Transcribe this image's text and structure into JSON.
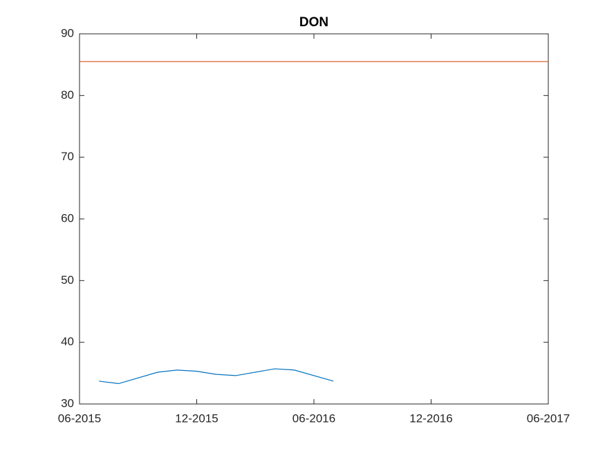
{
  "chart_data": {
    "type": "line",
    "title": "DON",
    "xlim": [
      "06-2015",
      "06-2017"
    ],
    "xticks": [
      "06-2015",
      "12-2015",
      "06-2016",
      "12-2016",
      "06-2017"
    ],
    "ylim": [
      30,
      90
    ],
    "yticks": [
      30,
      40,
      50,
      60,
      70,
      80,
      90
    ],
    "grid": false,
    "series": [
      {
        "color": "#0072bd",
        "x": [
          "07-2015",
          "08-2015",
          "10-2015",
          "11-2015",
          "12-2015",
          "01-2016",
          "02-2016",
          "04-2016",
          "05-2016",
          "07-2016"
        ],
        "values": [
          33.7,
          33.3,
          35.15,
          35.5,
          35.3,
          34.8,
          34.6,
          35.7,
          35.5,
          33.7
        ]
      },
      {
        "color": "#d95319",
        "x": [
          "06-2015",
          "06-2017"
        ],
        "values": [
          85.5,
          85.5
        ]
      }
    ]
  }
}
